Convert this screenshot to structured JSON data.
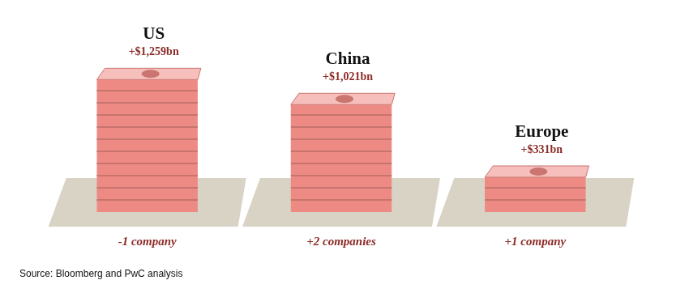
{
  "chart_data": {
    "type": "bar",
    "categories": [
      "US",
      "China",
      "Europe"
    ],
    "values": [
      1259,
      1021,
      331
    ],
    "value_labels": [
      "+$1,259bn",
      "+$1,021bn",
      "+$331bn"
    ],
    "data_labels": true,
    "annotations": [
      "-1 company",
      "+2 companies",
      "+1 company"
    ],
    "source": "Source: Bloomberg and PwC analysis",
    "color": "#ee8a84",
    "grid": false,
    "tick_labels": false
  }
}
